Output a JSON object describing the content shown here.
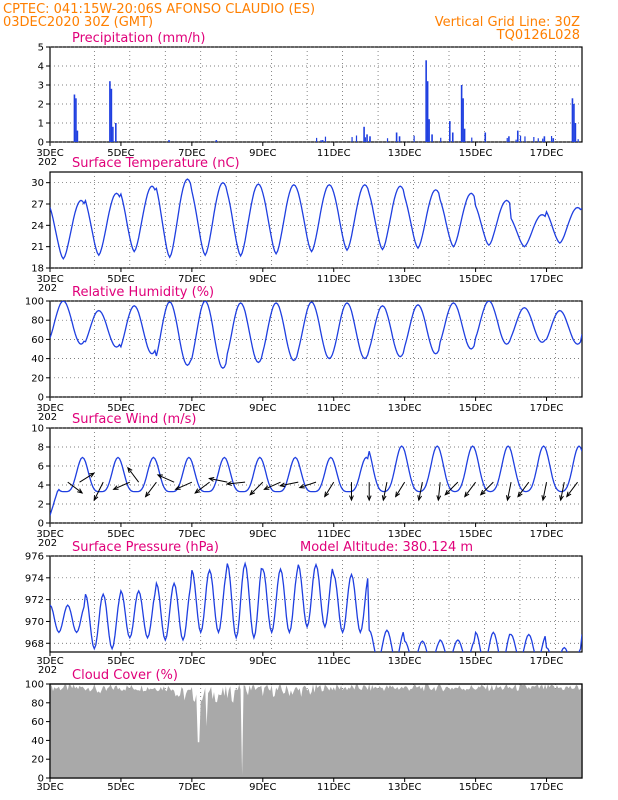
{
  "header": {
    "line1": "CPTEC:   041:15W-20:06S   AFONSO CLAUDIO (ES)",
    "line2": "03DEC2020 30Z (GMT)",
    "vgrid": "Vertical Grid Line: 30Z",
    "code": "TQ0126L028"
  },
  "colors": {
    "header": "#ff7f00",
    "title": "#e0007a",
    "series": "#1f3fe0",
    "cloud": "#a9a9a9",
    "wind_arrow": "#000000"
  },
  "x_axis": {
    "start_hour": 0,
    "end_hour": 360,
    "tick_labels": [
      "3DEC",
      "5DEC",
      "7DEC",
      "9DEC",
      "11DEC",
      "13DEC",
      "15DEC",
      "17DEC"
    ],
    "tick_hours": [
      0,
      48,
      96,
      144,
      192,
      240,
      288,
      336
    ],
    "year_stub": "202"
  },
  "chart_data": [
    {
      "name": "precipitation",
      "type": "bar",
      "title": "Precipitation (mm/h)",
      "ylim": [
        0,
        5
      ],
      "yticks": [
        "0",
        "1",
        "2",
        "3",
        "4",
        "5"
      ],
      "spikes": [
        {
          "h": 16,
          "v": 2.5
        },
        {
          "h": 17,
          "v": 2.3
        },
        {
          "h": 18,
          "v": 0.6
        },
        {
          "h": 40,
          "v": 3.2
        },
        {
          "h": 41,
          "v": 2.8
        },
        {
          "h": 42,
          "v": 0.8
        },
        {
          "h": 44,
          "v": 1.0
        },
        {
          "h": 80,
          "v": 0.1
        },
        {
          "h": 112,
          "v": 0.1
        },
        {
          "h": 184,
          "v": 0.1
        },
        {
          "h": 212,
          "v": 0.8
        },
        {
          "h": 214,
          "v": 0.4
        },
        {
          "h": 216,
          "v": 0.3
        },
        {
          "h": 234,
          "v": 0.5
        },
        {
          "h": 236,
          "v": 0.3
        },
        {
          "h": 254,
          "v": 4.3
        },
        {
          "h": 255,
          "v": 3.2
        },
        {
          "h": 256,
          "v": 1.2
        },
        {
          "h": 258,
          "v": 0.4
        },
        {
          "h": 270,
          "v": 1.1
        },
        {
          "h": 272,
          "v": 0.5
        },
        {
          "h": 278,
          "v": 3.0
        },
        {
          "h": 279,
          "v": 2.3
        },
        {
          "h": 280,
          "v": 0.7
        },
        {
          "h": 294,
          "v": 0.5
        },
        {
          "h": 310,
          "v": 0.3
        },
        {
          "h": 316,
          "v": 0.6
        },
        {
          "h": 334,
          "v": 0.3
        },
        {
          "h": 340,
          "v": 0.2
        },
        {
          "h": 353,
          "v": 2.3
        },
        {
          "h": 354,
          "v": 2.0
        },
        {
          "h": 355,
          "v": 1.0
        }
      ]
    },
    {
      "name": "temperature",
      "type": "line",
      "title": "Surface Temperature (nC)",
      "ylim": [
        18,
        31.5
      ],
      "yticks": [
        "18",
        "21",
        "24",
        "27",
        "30"
      ],
      "ytick_values": [
        18,
        21,
        24,
        27,
        30
      ],
      "day_max": [
        27.5,
        28.5,
        29.5,
        30.5,
        30.0,
        29.8,
        29.7,
        29.7,
        29.7,
        29.5,
        29.0,
        28.5,
        27.5,
        25.5,
        26.5,
        27.0,
        28.0
      ],
      "day_min": [
        19.3,
        19.8,
        20.3,
        19.5,
        19.8,
        19.7,
        20.0,
        20.3,
        20.5,
        20.6,
        20.8,
        21.0,
        21.2,
        21.0,
        21.5,
        21.8,
        22.2
      ]
    },
    {
      "name": "humidity",
      "type": "line",
      "title": "Relative Humidity (%)",
      "ylim": [
        0,
        100
      ],
      "yticks": [
        "0",
        "20",
        "40",
        "60",
        "80",
        "100"
      ],
      "ytick_values": [
        0,
        20,
        40,
        60,
        80,
        100
      ],
      "day_max": [
        100,
        90,
        95,
        99,
        100,
        98,
        98,
        99,
        98,
        95,
        96,
        98,
        100,
        93,
        90,
        96,
        96
      ],
      "day_min": [
        55,
        52,
        45,
        33,
        30,
        36,
        38,
        40,
        40,
        42,
        45,
        50,
        55,
        57,
        55,
        60,
        62
      ]
    },
    {
      "name": "wind",
      "type": "line",
      "title": "Surface Wind (m/s)",
      "ylim": [
        0,
        10
      ],
      "yticks": [
        "0",
        "2",
        "4",
        "6",
        "8",
        "10"
      ],
      "ytick_values": [
        0,
        2,
        4,
        6,
        8,
        10
      ],
      "vectors": [
        {
          "h": 12,
          "u": 0.8,
          "v": -0.6
        },
        {
          "h": 20,
          "u": 0.8,
          "v": 0.5
        },
        {
          "h": 36,
          "u": -0.5,
          "v": -1
        },
        {
          "h": 54,
          "u": -0.9,
          "v": -0.4
        },
        {
          "h": 60,
          "u": -0.6,
          "v": 0.8
        },
        {
          "h": 72,
          "u": -0.6,
          "v": -0.8
        },
        {
          "h": 84,
          "u": -0.9,
          "v": 0.4
        },
        {
          "h": 96,
          "u": -0.9,
          "v": -0.4
        },
        {
          "h": 108,
          "u": -0.8,
          "v": -0.6
        },
        {
          "h": 120,
          "u": -1,
          "v": 0.2
        },
        {
          "h": 132,
          "u": -1,
          "v": -0.1
        },
        {
          "h": 144,
          "u": -0.7,
          "v": -0.7
        },
        {
          "h": 156,
          "u": -0.9,
          "v": -0.4
        },
        {
          "h": 168,
          "u": -1,
          "v": -0.2
        },
        {
          "h": 180,
          "u": -0.9,
          "v": -0.3
        },
        {
          "h": 192,
          "u": -0.5,
          "v": -0.8
        },
        {
          "h": 204,
          "u": 0,
          "v": -1
        },
        {
          "h": 216,
          "u": 0,
          "v": -1
        },
        {
          "h": 228,
          "u": -0.2,
          "v": -1
        },
        {
          "h": 240,
          "u": -0.5,
          "v": -0.8
        },
        {
          "h": 252,
          "u": -0.2,
          "v": -1
        },
        {
          "h": 264,
          "u": -0.1,
          "v": -1
        },
        {
          "h": 276,
          "u": -0.7,
          "v": -0.7
        },
        {
          "h": 288,
          "u": -0.6,
          "v": -0.8
        },
        {
          "h": 300,
          "u": -0.7,
          "v": -0.7
        },
        {
          "h": 312,
          "u": -0.2,
          "v": -1
        },
        {
          "h": 324,
          "u": -0.6,
          "v": -0.8
        },
        {
          "h": 336,
          "u": -0.2,
          "v": -1
        },
        {
          "h": 348,
          "u": -0.2,
          "v": -1
        },
        {
          "h": 357,
          "u": -0.6,
          "v": -0.8
        }
      ]
    },
    {
      "name": "pressure",
      "type": "line",
      "title": "Surface Pressure (hPa)",
      "subtitle": "Model Altitude: 380.124 m",
      "ylim": [
        967.2,
        976
      ],
      "yticks": [
        "968",
        "970",
        "972",
        "974",
        "976"
      ],
      "ytick_values": [
        968,
        970,
        972,
        974,
        976
      ],
      "day_max": [
        971.5,
        972.5,
        972.8,
        973.5,
        974.7,
        975.3,
        974.8,
        975.2,
        974.3,
        969.2,
        968.2,
        968.3,
        969.0,
        968.8,
        967.6,
        968.8,
        968.5
      ],
      "day_min": [
        969.0,
        967.5,
        968.5,
        968.3,
        969.0,
        968.5,
        969.0,
        969.5,
        969.0,
        966.5,
        966.3,
        966.5,
        966.2,
        966.5,
        966.0,
        966.2,
        966.3
      ]
    },
    {
      "name": "cloud",
      "type": "area",
      "title": "Cloud Cover (%)",
      "ylim": [
        0,
        100
      ],
      "yticks": [
        "0",
        "20",
        "40",
        "60",
        "80",
        "100"
      ],
      "ytick_values": [
        0,
        20,
        40,
        60,
        80,
        100
      ]
    }
  ]
}
